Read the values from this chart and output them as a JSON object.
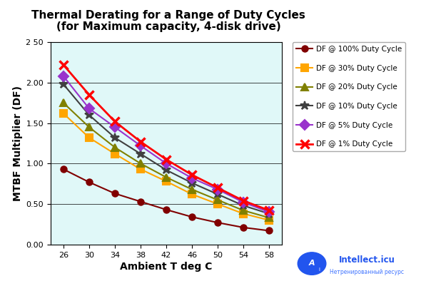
{
  "title_line1": "Thermal Derating for a Range of Duty Cycles",
  "title_line2": "(for Maximum capacity, 4-disk drive)",
  "xlabel": "Ambient T deg C",
  "ylabel": "MTBF Multiplier (DF)",
  "x": [
    26,
    30,
    34,
    38,
    42,
    46,
    50,
    54,
    58
  ],
  "series": [
    {
      "label": "DF @ 100% Duty Cycle",
      "color": "#800000",
      "marker": "o",
      "markersize": 6,
      "linewidth": 1.5,
      "values": [
        0.93,
        0.77,
        0.63,
        0.53,
        0.43,
        0.34,
        0.27,
        0.21,
        0.17
      ]
    },
    {
      "label": "DF @ 30% Duty Cycle",
      "color": "#FFA500",
      "marker": "s",
      "markersize": 7,
      "linewidth": 1.5,
      "values": [
        1.62,
        1.32,
        1.12,
        0.93,
        0.78,
        0.62,
        0.5,
        0.38,
        0.3
      ]
    },
    {
      "label": "DF @ 20% Duty Cycle",
      "color": "#808000",
      "marker": "^",
      "markersize": 7,
      "linewidth": 1.5,
      "values": [
        1.75,
        1.45,
        1.2,
        1.0,
        0.83,
        0.68,
        0.55,
        0.42,
        0.33
      ]
    },
    {
      "label": "DF @ 10% Duty Cycle",
      "color": "#404040",
      "marker": "*",
      "markersize": 9,
      "linewidth": 1.5,
      "values": [
        1.98,
        1.6,
        1.32,
        1.12,
        0.92,
        0.76,
        0.62,
        0.48,
        0.38
      ]
    },
    {
      "label": "DF @ 5% Duty Cycle",
      "color": "#9933CC",
      "marker": "D",
      "markersize": 7,
      "linewidth": 1.5,
      "values": [
        2.08,
        1.68,
        1.45,
        1.22,
        1.0,
        0.82,
        0.68,
        0.52,
        0.4
      ]
    },
    {
      "label": "DF @ 1% Duty Cycle",
      "color": "#FF0000",
      "marker": "x",
      "markersize": 9,
      "linewidth": 2.0,
      "markeredgewidth": 2.5,
      "values": [
        2.22,
        1.85,
        1.52,
        1.27,
        1.05,
        0.86,
        0.7,
        0.54,
        0.42
      ]
    }
  ],
  "xlim": [
    24,
    60
  ],
  "ylim": [
    0.0,
    2.5
  ],
  "yticks": [
    0.0,
    0.5,
    1.0,
    1.5,
    2.0,
    2.5
  ],
  "ytick_labels": [
    "0.00",
    "0.50",
    "1.00",
    "1.50",
    "2.00",
    "2 50"
  ],
  "xticks": [
    26,
    30,
    34,
    38,
    42,
    46,
    50,
    54,
    58
  ],
  "background_color": "#E0F8F8",
  "grid_color": "#000000",
  "title_fontsize": 11,
  "axis_label_fontsize": 10,
  "tick_fontsize": 8,
  "legend_fontsize": 7.5,
  "fig_width": 5.9,
  "fig_height": 3.94,
  "logo_text1": "Intellect.icu",
  "logo_text2": "Нетренированный ресурс",
  "logo_color1": "#2255EE",
  "logo_color2": "#4477FF",
  "logo_bg": "#FFFFFF"
}
